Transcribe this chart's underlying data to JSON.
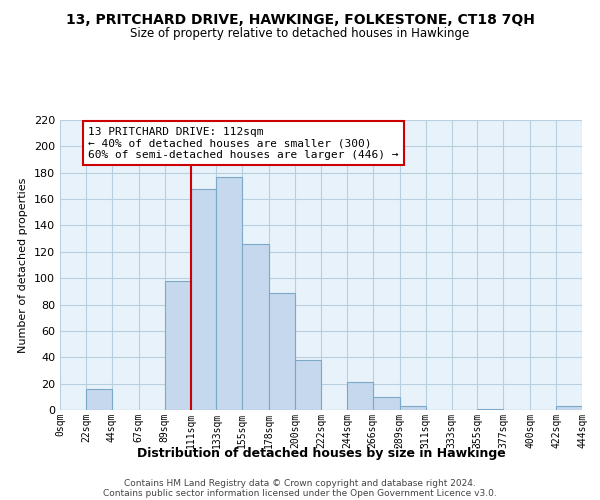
{
  "title": "13, PRITCHARD DRIVE, HAWKINGE, FOLKESTONE, CT18 7QH",
  "subtitle": "Size of property relative to detached houses in Hawkinge",
  "xlabel": "Distribution of detached houses by size in Hawkinge",
  "ylabel": "Number of detached properties",
  "bar_color": "#c5d8ed",
  "bar_edge_color": "#7aaac8",
  "background_color": "#ffffff",
  "plot_bg_color": "#e8f2fb",
  "grid_color": "#b8cfe0",
  "property_line_x": 111,
  "property_line_color": "#cc0000",
  "bin_edges": [
    0,
    22,
    44,
    67,
    89,
    111,
    133,
    155,
    178,
    200,
    222,
    244,
    266,
    289,
    311,
    333,
    355,
    377,
    400,
    422,
    444
  ],
  "bin_labels": [
    "0sqm",
    "22sqm",
    "44sqm",
    "67sqm",
    "89sqm",
    "111sqm",
    "133sqm",
    "155sqm",
    "178sqm",
    "200sqm",
    "222sqm",
    "244sqm",
    "266sqm",
    "289sqm",
    "311sqm",
    "333sqm",
    "355sqm",
    "377sqm",
    "400sqm",
    "422sqm",
    "444sqm"
  ],
  "counts": [
    0,
    16,
    0,
    0,
    98,
    168,
    177,
    126,
    89,
    38,
    0,
    21,
    10,
    3,
    0,
    0,
    1,
    0,
    0,
    3
  ],
  "ylim": [
    0,
    220
  ],
  "yticks": [
    0,
    20,
    40,
    60,
    80,
    100,
    120,
    140,
    160,
    180,
    200,
    220
  ],
  "annotation_title": "13 PRITCHARD DRIVE: 112sqm",
  "annotation_line1": "← 40% of detached houses are smaller (300)",
  "annotation_line2": "60% of semi-detached houses are larger (446) →",
  "annotation_box_color": "#ffffff",
  "annotation_box_edge_color": "#cc0000",
  "footer_line1": "Contains HM Land Registry data © Crown copyright and database right 2024.",
  "footer_line2": "Contains public sector information licensed under the Open Government Licence v3.0."
}
